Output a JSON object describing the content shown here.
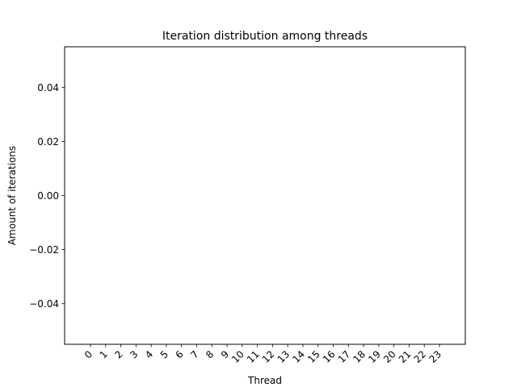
{
  "chart_data": {
    "type": "bar",
    "title": "Iteration distribution among threads",
    "xlabel": "Thread",
    "ylabel": "Amount of iterations",
    "categories": [
      "0",
      "1",
      "2",
      "3",
      "4",
      "5",
      "6",
      "7",
      "8",
      "9",
      "10",
      "11",
      "12",
      "13",
      "14",
      "15",
      "16",
      "17",
      "18",
      "19",
      "20",
      "21",
      "22",
      "23"
    ],
    "values": [
      0,
      0,
      0,
      0,
      0,
      0,
      0,
      0,
      0,
      0,
      0,
      0,
      0,
      0,
      0,
      0,
      0,
      0,
      0,
      0,
      0,
      0,
      0,
      0
    ],
    "ylim": [
      -0.055,
      0.055
    ],
    "yticks": [
      {
        "value": -0.04,
        "label": "−0.04"
      },
      {
        "value": -0.02,
        "label": "−0.02"
      },
      {
        "value": 0.0,
        "label": "0.00"
      },
      {
        "value": 0.02,
        "label": "0.02"
      },
      {
        "value": 0.04,
        "label": "0.04"
      }
    ],
    "grid": false,
    "bar_color": "#1f77b4"
  }
}
